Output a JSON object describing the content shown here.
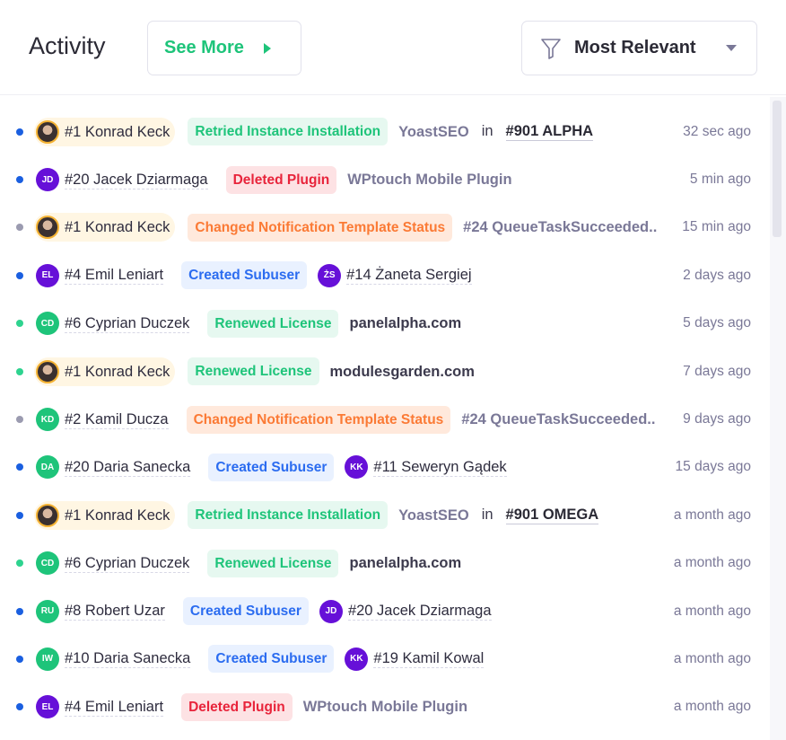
{
  "header": {
    "title": "Activity",
    "see_more": "See More",
    "sort": "Most Relevant"
  },
  "colors": {
    "accent": "#1ec47a",
    "purple": "#6610d8",
    "green": "#1ec47a",
    "dot_blue": "#1a5fe0",
    "dot_green": "#2ed38f",
    "dot_gray": "#9b9bb0"
  },
  "rows": [
    {
      "dot": "blue",
      "actor": {
        "name": "#1 Konrad Keck",
        "photo": true
      },
      "action": {
        "label": "Retried Instance Installation",
        "tone": "green"
      },
      "target": {
        "label": "YoastSEO"
      },
      "in": "in",
      "instance": "#901 ALPHA",
      "time": "32 sec ago"
    },
    {
      "dot": "blue",
      "actor": {
        "name": "#20 Jacek Dziarmaga",
        "initials": "JD",
        "color": "purple"
      },
      "action": {
        "label": "Deleted Plugin",
        "tone": "red"
      },
      "target": {
        "label": "WPtouch Mobile Plugin"
      },
      "time": "5 min ago"
    },
    {
      "dot": "gray",
      "actor": {
        "name": "#1 Konrad Keck",
        "photo": true
      },
      "action": {
        "label": "Changed Notification Template Status",
        "tone": "orange"
      },
      "target": {
        "label": "#24 QueueTaskSucceeded.."
      },
      "time": "15 min ago"
    },
    {
      "dot": "blue",
      "actor": {
        "name": "#4 Emil Leniart",
        "initials": "EL",
        "color": "purple"
      },
      "action": {
        "label": "Created Subuser",
        "tone": "blue"
      },
      "target": {
        "label": "#14 Żaneta Sergiej",
        "user": true,
        "initials": "ŻS",
        "color": "purple"
      },
      "time": "2 days ago"
    },
    {
      "dot": "green",
      "actor": {
        "name": "#6 Cyprian Duczek",
        "initials": "CD",
        "color": "green"
      },
      "action": {
        "label": "Renewed License",
        "tone": "green"
      },
      "target": {
        "label": "panelalpha.com",
        "dark": true
      },
      "time": "5 days ago"
    },
    {
      "dot": "green",
      "actor": {
        "name": "#1 Konrad Keck",
        "photo": true
      },
      "action": {
        "label": "Renewed License",
        "tone": "green"
      },
      "target": {
        "label": "modulesgarden.com",
        "dark": true
      },
      "time": "7 days ago"
    },
    {
      "dot": "gray",
      "actor": {
        "name": "#2 Kamil Ducza",
        "initials": "KD",
        "color": "green"
      },
      "action": {
        "label": "Changed Notification Template Status",
        "tone": "orange"
      },
      "target": {
        "label": "#24 QueueTaskSucceeded.."
      },
      "time": "9 days ago"
    },
    {
      "dot": "blue",
      "actor": {
        "name": "#20 Daria Sanecka",
        "initials": "DA",
        "color": "green"
      },
      "action": {
        "label": "Created Subuser",
        "tone": "blue"
      },
      "target": {
        "label": "#11 Seweryn Gądek",
        "user": true,
        "initials": "KK",
        "color": "purple"
      },
      "time": "15 days ago"
    },
    {
      "dot": "blue",
      "actor": {
        "name": "#1 Konrad Keck",
        "photo": true
      },
      "action": {
        "label": "Retried Instance Installation",
        "tone": "green"
      },
      "target": {
        "label": "YoastSEO"
      },
      "in": "in",
      "instance": "#901 OMEGA",
      "time": "a month ago"
    },
    {
      "dot": "green",
      "actor": {
        "name": "#6 Cyprian Duczek",
        "initials": "CD",
        "color": "green"
      },
      "action": {
        "label": "Renewed License",
        "tone": "green"
      },
      "target": {
        "label": "panelalpha.com",
        "dark": true
      },
      "time": "a month ago"
    },
    {
      "dot": "blue",
      "actor": {
        "name": "#8 Robert Uzar",
        "initials": "RU",
        "color": "green"
      },
      "action": {
        "label": "Created Subuser",
        "tone": "blue"
      },
      "target": {
        "label": "#20 Jacek Dziarmaga",
        "user": true,
        "initials": "JD",
        "color": "purple"
      },
      "time": "a month ago"
    },
    {
      "dot": "blue",
      "actor": {
        "name": "#10 Daria Sanecka",
        "initials": "IW",
        "color": "green"
      },
      "action": {
        "label": "Created Subuser",
        "tone": "blue"
      },
      "target": {
        "label": "#19 Kamil Kowal",
        "user": true,
        "initials": "KK",
        "color": "purple"
      },
      "time": "a month ago"
    },
    {
      "dot": "blue",
      "actor": {
        "name": "#4 Emil Leniart",
        "initials": "EL",
        "color": "purple"
      },
      "action": {
        "label": "Deleted Plugin",
        "tone": "red"
      },
      "target": {
        "label": "WPtouch Mobile Plugin"
      },
      "time": "a month ago"
    }
  ]
}
